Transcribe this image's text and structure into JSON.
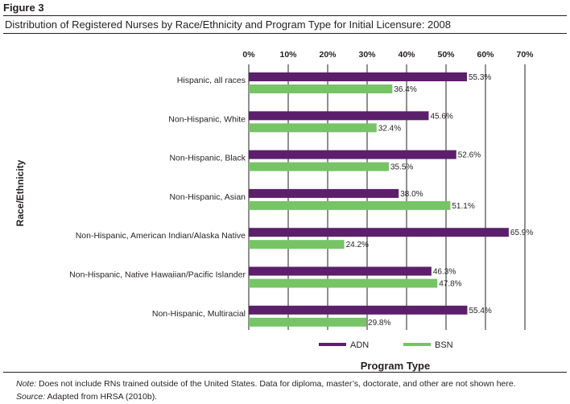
{
  "figure_label": "Figure 3",
  "figure_title": "Distribution of Registered Nurses by Race/Ethnicity and Program Type for Initial Licensure: 2008",
  "note_label": "Note:",
  "note_text": "Does not include RNs trained outside of the United States. Data for diploma, master’s, doctorate, and other are not shown here.",
  "source_label": "Source:",
  "source_text": "Adapted from HRSA (2010b).",
  "colors": {
    "adn": "#5c1f6b",
    "bsn": "#76c466",
    "text": "#231f20",
    "gridline": "#231f20"
  },
  "chart_data": {
    "type": "bar",
    "orientation": "horizontal",
    "title": "",
    "xlabel": "Program Type",
    "ylabel": "Race/Ethnicity",
    "xlim": [
      0,
      70
    ],
    "ticks": [
      "0%",
      "10%",
      "20%",
      "30%",
      "40%",
      "50%",
      "60%",
      "70%"
    ],
    "categories": [
      "Hispanic, all races",
      "Non-Hispanic, White",
      "Non-Hispanic, Black",
      "Non-Hispanic, Asian",
      "Non-Hispanic, American Indian/Alaska Native",
      "Non-Hispanic, Native Hawaiian/Pacific Islander",
      "Non-Hispanic, Multiracial"
    ],
    "series": [
      {
        "name": "ADN",
        "values": [
          55.3,
          45.6,
          52.6,
          38.0,
          65.9,
          46.3,
          55.4
        ],
        "labels": [
          "55.3%",
          "45.6%",
          "52.6%",
          "38.0%",
          "65.9%",
          "46.3%",
          "55.4%"
        ]
      },
      {
        "name": "BSN",
        "values": [
          36.4,
          32.4,
          35.5,
          51.1,
          24.2,
          47.8,
          29.8
        ],
        "labels": [
          "36.4%",
          "32.4%",
          "35.5%",
          "51.1%",
          "24.2%",
          "47.8%",
          "29.8%"
        ]
      }
    ],
    "legend_position": "bottom",
    "grid": true
  }
}
